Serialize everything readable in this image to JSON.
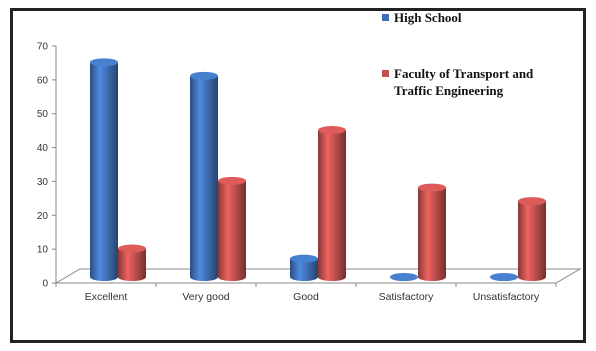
{
  "chart_data": {
    "type": "bar",
    "title": "",
    "xlabel": "",
    "ylabel": "",
    "ylim": [
      0,
      70
    ],
    "yticks": [
      "0",
      "10",
      "20",
      "30",
      "40",
      "50",
      "60",
      "70"
    ],
    "categories": [
      "Excellent",
      "Very good",
      "Good",
      "Satisfactory",
      "Unsatisfactory"
    ],
    "series": [
      {
        "name": "High School",
        "color": "#3f6fb5",
        "values": [
          64,
          60,
          6,
          0.5,
          0.5
        ]
      },
      {
        "name": "Faculty of Transport and Traffic Engineering",
        "color": "#c0504d",
        "values": [
          9,
          29,
          44,
          27,
          23
        ]
      }
    ],
    "legend": {
      "placement": "top-right",
      "items": [
        {
          "lines": [
            "High School"
          ]
        },
        {
          "lines": [
            "Faculty of Transport and",
            "Traffic Engineering"
          ]
        }
      ]
    },
    "grid": false,
    "style": "3d-cylinder"
  }
}
